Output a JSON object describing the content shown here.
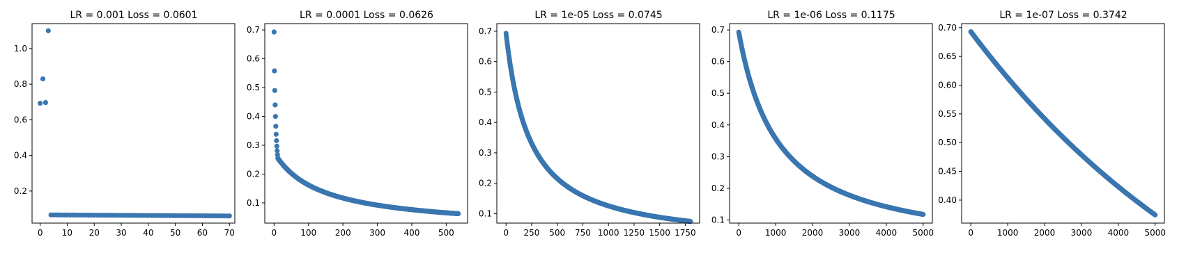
{
  "chart_data": [
    {
      "type": "scatter",
      "title": "LR = 0.001 Loss = 0.0601",
      "color": "#3a76b0",
      "xlim": [
        -3,
        72
      ],
      "ylim": [
        0.02,
        1.14
      ],
      "xticks": [
        0,
        10,
        20,
        30,
        40,
        50,
        60,
        70
      ],
      "yticks": [
        0.2,
        0.4,
        0.6,
        0.8,
        1.0
      ],
      "ytick_decimals": 1,
      "points": [
        [
          0,
          0.693
        ],
        [
          1,
          0.83
        ],
        [
          2,
          0.697
        ],
        [
          3,
          1.1
        ]
      ],
      "curve": {
        "x_start": 4,
        "x_end": 70,
        "step": 1,
        "y_start": 0.066,
        "y_end": 0.0601,
        "shape": "linear"
      },
      "final_loss": 0.0601
    },
    {
      "type": "scatter",
      "title": "LR = 0.0001 Loss = 0.0626",
      "color": "#3a76b0",
      "xlim": [
        -27,
        562
      ],
      "ylim": [
        0.03,
        0.722
      ],
      "xticks": [
        0,
        100,
        200,
        300,
        400,
        500
      ],
      "yticks": [
        0.1,
        0.2,
        0.3,
        0.4,
        0.5,
        0.6,
        0.7
      ],
      "ytick_decimals": 1,
      "points": [
        [
          0,
          0.693
        ],
        [
          1,
          0.558
        ],
        [
          2,
          0.49
        ],
        [
          3,
          0.44
        ],
        [
          4,
          0.4
        ],
        [
          5,
          0.366
        ],
        [
          6,
          0.338
        ],
        [
          7,
          0.316
        ],
        [
          8,
          0.297
        ],
        [
          9,
          0.281
        ],
        [
          10,
          0.267
        ]
      ],
      "curve": {
        "x_start": 11,
        "x_end": 535,
        "step": 1,
        "y_start": 0.255,
        "y_end": 0.0626,
        "shape": "power",
        "power": 1.15
      },
      "final_loss": 0.0626
    },
    {
      "type": "scatter",
      "title": "LR = 1e-05 Loss = 0.0745",
      "color": "#3a76b0",
      "xlim": [
        -90,
        1890
      ],
      "ylim": [
        0.069,
        0.725
      ],
      "xticks": [
        0,
        250,
        500,
        750,
        1000,
        1250,
        1500,
        1750
      ],
      "yticks": [
        0.1,
        0.2,
        0.3,
        0.4,
        0.5,
        0.6,
        0.7
      ],
      "ytick_decimals": 1,
      "points": [],
      "curve": {
        "x_start": 0,
        "x_end": 1800,
        "step": 3,
        "y_start": 0.693,
        "y_end": 0.0745,
        "shape": "power",
        "power": 0.95
      },
      "final_loss": 0.0745
    },
    {
      "type": "scatter",
      "title": "LR = 1e-06 Loss = 0.1175",
      "color": "#3a76b0",
      "xlim": [
        -250,
        5250
      ],
      "ylim": [
        0.09,
        0.72
      ],
      "xticks": [
        0,
        1000,
        2000,
        3000,
        4000,
        5000
      ],
      "yticks": [
        0.1,
        0.2,
        0.3,
        0.4,
        0.5,
        0.6,
        0.7
      ],
      "ytick_decimals": 1,
      "points": [],
      "curve": {
        "x_start": 0,
        "x_end": 5000,
        "step": 8,
        "y_start": 0.693,
        "y_end": 0.1175,
        "shape": "power",
        "power": 0.95
      },
      "final_loss": 0.1175
    },
    {
      "type": "scatter",
      "title": "LR = 1e-07 Loss = 0.3742",
      "color": "#3a76b0",
      "xlim": [
        -250,
        5250
      ],
      "ylim": [
        0.36,
        0.707
      ],
      "xticks": [
        0,
        1000,
        2000,
        3000,
        4000,
        5000
      ],
      "yticks": [
        0.4,
        0.45,
        0.5,
        0.55,
        0.6,
        0.65,
        0.7
      ],
      "ytick_decimals": 2,
      "points": [],
      "curve": {
        "x_start": 0,
        "x_end": 5000,
        "step": 10,
        "y_start": 0.693,
        "y_end": 0.3742,
        "shape": "exp"
      },
      "final_loss": 0.3742
    }
  ]
}
